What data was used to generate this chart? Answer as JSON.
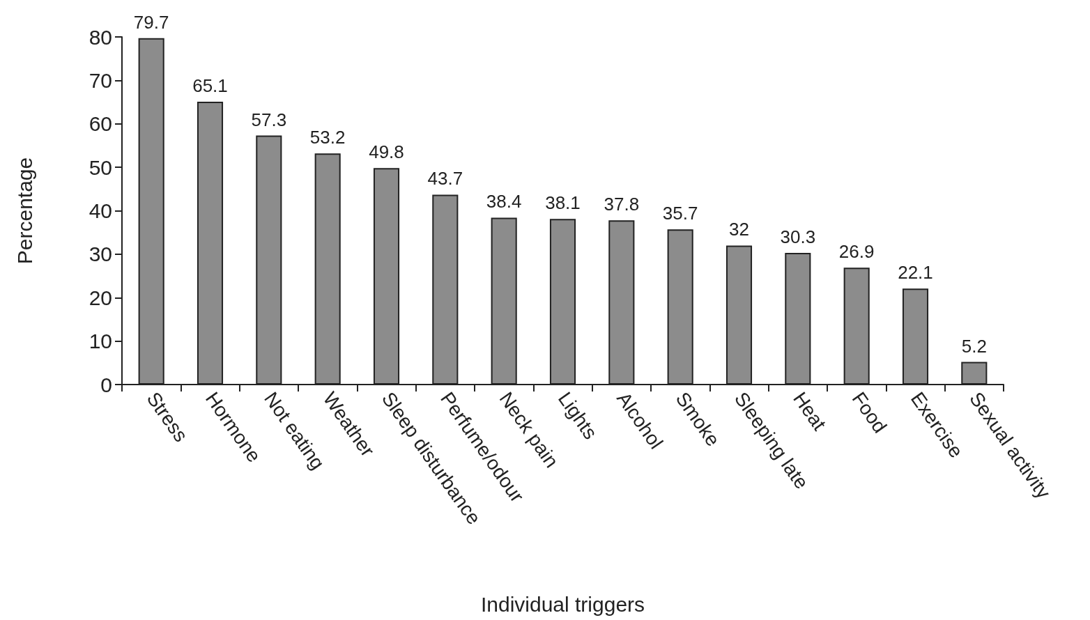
{
  "chart_data": {
    "type": "bar",
    "xlabel": "Individual triggers",
    "ylabel": "Percentage",
    "categories": [
      "Stress",
      "Hormone",
      "Not eating",
      "Weather",
      "Sleep disturbance",
      "Perfume/odour",
      "Neck pain",
      "Lights",
      "Alcohol",
      "Smoke",
      "Sleeping late",
      "Heat",
      "Food",
      "Exercise",
      "Sexual activity"
    ],
    "values": [
      79.7,
      65.1,
      57.3,
      53.2,
      49.8,
      43.7,
      38.4,
      38.1,
      37.8,
      35.7,
      32,
      30.3,
      26.9,
      22.1,
      5.2
    ],
    "color": "#8c8c8c",
    "ylim": [
      0,
      80
    ],
    "yticks": [
      0,
      10,
      20,
      30,
      40,
      50,
      60,
      70,
      80
    ],
    "grid": false,
    "data_labels": true
  }
}
